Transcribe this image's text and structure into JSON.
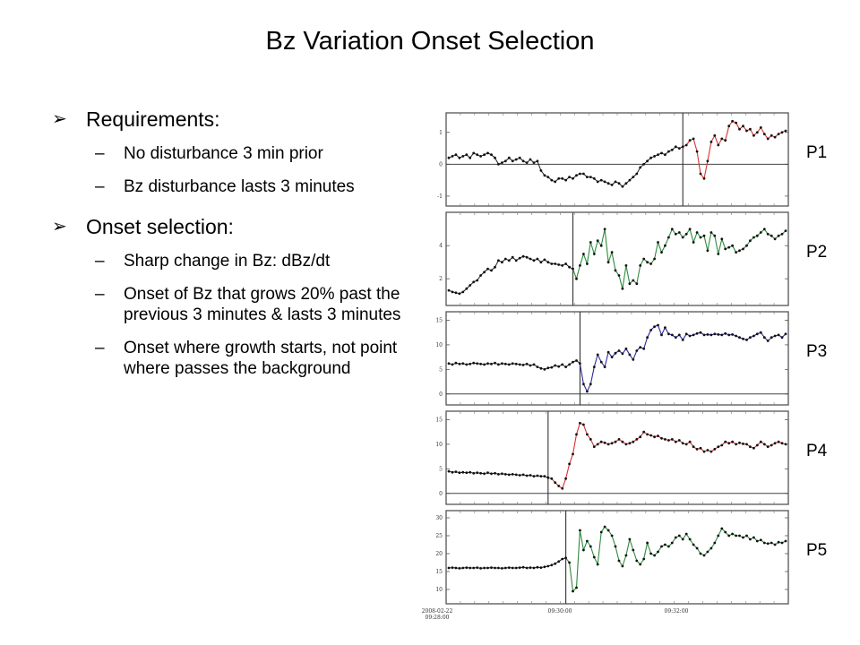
{
  "slide": {
    "title": "Bz Variation Onset Selection",
    "sections": [
      {
        "marker": "➢",
        "heading": "Requirements:",
        "items": [
          "No disturbance 3 min prior",
          "Bz disturbance lasts 3 minutes"
        ]
      },
      {
        "marker": "➢",
        "heading": "Onset selection:",
        "items": [
          "Sharp change in Bz: dBz/dt",
          "Onset of Bz that grows 20% past the previous 3 minutes & lasts 3 minutes",
          "Onset where growth starts, not point where passes the background"
        ]
      }
    ]
  },
  "chart_data": [
    {
      "type": "line",
      "name": "P1",
      "color": "#d93030",
      "yticks": [
        "1",
        "0",
        "-1"
      ],
      "ylim": [
        -1.2,
        1.5
      ],
      "onset_index": 66,
      "baseline": 0,
      "values": [
        0.2,
        0.25,
        0.3,
        0.2,
        0.25,
        0.3,
        0.2,
        0.35,
        0.3,
        0.25,
        0.3,
        0.35,
        0.3,
        0.2,
        0.0,
        0.05,
        0.1,
        0.2,
        0.1,
        0.15,
        0.2,
        0.1,
        0.05,
        0.15,
        0.05,
        0.1,
        -0.2,
        -0.35,
        -0.4,
        -0.5,
        -0.55,
        -0.45,
        -0.45,
        -0.5,
        -0.4,
        -0.45,
        -0.35,
        -0.3,
        -0.3,
        -0.4,
        -0.4,
        -0.45,
        -0.55,
        -0.5,
        -0.55,
        -0.6,
        -0.65,
        -0.55,
        -0.6,
        -0.7,
        -0.6,
        -0.5,
        -0.4,
        -0.3,
        -0.1,
        0.0,
        0.1,
        0.2,
        0.25,
        0.3,
        0.35,
        0.3,
        0.4,
        0.45,
        0.55,
        0.5,
        0.55,
        0.6,
        0.75,
        0.8,
        0.4,
        -0.3,
        -0.45,
        0.1,
        0.7,
        0.9,
        0.6,
        0.8,
        0.75,
        1.2,
        1.35,
        1.3,
        1.1,
        1.2,
        1.05,
        1.1,
        0.9,
        1.0,
        1.15,
        0.95,
        0.8,
        0.9,
        0.85,
        0.95,
        1.0,
        1.05
      ]
    },
    {
      "type": "line",
      "name": "P2",
      "color": "#2e8b3e",
      "yticks": [
        "4",
        "2"
      ],
      "ylim": [
        0.6,
        5.8
      ],
      "onset_index": 35,
      "baseline": null,
      "values": [
        1.3,
        1.2,
        1.15,
        1.1,
        1.2,
        1.4,
        1.6,
        1.8,
        1.9,
        2.2,
        2.4,
        2.6,
        2.5,
        2.7,
        3.1,
        3.0,
        3.2,
        3.1,
        3.3,
        3.1,
        3.25,
        3.35,
        3.3,
        3.2,
        3.1,
        3.2,
        3.0,
        3.15,
        3.0,
        2.9,
        2.9,
        2.85,
        2.8,
        2.9,
        2.7,
        2.6,
        2.0,
        2.8,
        3.5,
        2.9,
        4.2,
        3.5,
        4.3,
        4.0,
        5.0,
        3.0,
        3.6,
        2.5,
        2.2,
        1.4,
        2.8,
        1.7,
        1.9,
        1.7,
        2.8,
        3.2,
        3.0,
        2.9,
        3.2,
        4.2,
        3.6,
        4.0,
        4.5,
        5.0,
        4.7,
        4.8,
        4.5,
        4.7,
        5.0,
        4.2,
        4.8,
        4.5,
        4.6,
        3.7,
        4.8,
        4.6,
        3.5,
        4.4,
        3.8,
        3.9,
        4.0,
        3.6,
        3.7,
        3.8,
        4.0,
        4.3,
        4.5,
        4.6,
        4.8,
        5.0,
        4.7,
        4.6,
        4.4,
        4.6,
        4.7,
        4.9
      ]
    },
    {
      "type": "line",
      "name": "P3",
      "color": "#2a2aa0",
      "yticks": [
        "15",
        "10",
        "5",
        "0"
      ],
      "ylim": [
        -1.5,
        16
      ],
      "onset_index": 37,
      "baseline": 0,
      "values": [
        6.2,
        6.0,
        6.3,
        6.1,
        6.2,
        6.0,
        6.1,
        6.3,
        6.2,
        6.1,
        6.0,
        6.2,
        6.1,
        6.3,
        6.0,
        6.2,
        6.1,
        6.0,
        6.2,
        6.1,
        6.0,
        5.9,
        6.1,
        5.8,
        6.0,
        5.5,
        5.2,
        5.0,
        5.3,
        5.4,
        5.8,
        5.6,
        6.0,
        5.5,
        6.0,
        6.5,
        6.8,
        6.2,
        2.0,
        0.5,
        2.0,
        5.5,
        8.0,
        6.5,
        5.5,
        8.5,
        7.5,
        8.3,
        8.8,
        8.2,
        9.2,
        8.0,
        7.0,
        8.8,
        9.5,
        9.2,
        11.5,
        13.0,
        13.7,
        14.0,
        12.0,
        13.5,
        12.2,
        12.0,
        11.5,
        12.0,
        11.0,
        12.2,
        11.8,
        12.0,
        12.3,
        12.5,
        12.0,
        12.1,
        12.0,
        12.2,
        12.1,
        12.0,
        12.3,
        12.0,
        12.1,
        11.8,
        11.5,
        11.2,
        11.0,
        11.5,
        11.8,
        12.2,
        12.5,
        11.5,
        10.8,
        11.5,
        11.8,
        12.0,
        11.5,
        12.2
      ]
    },
    {
      "type": "line",
      "name": "P4",
      "color": "#d93030",
      "yticks": [
        "15",
        "10",
        "5",
        "0"
      ],
      "ylim": [
        -1.5,
        16
      ],
      "onset_index": 28,
      "baseline": 0,
      "values": [
        4.5,
        4.3,
        4.4,
        4.2,
        4.3,
        4.2,
        4.3,
        4.1,
        4.2,
        4.1,
        4.0,
        4.2,
        4.0,
        4.1,
        3.9,
        4.0,
        3.9,
        3.8,
        3.9,
        3.8,
        3.7,
        3.8,
        3.6,
        3.7,
        3.5,
        3.6,
        3.5,
        3.5,
        3.2,
        3.0,
        2.2,
        1.5,
        1.0,
        3.0,
        6.0,
        8.0,
        12.0,
        14.3,
        14.0,
        12.0,
        11.0,
        9.5,
        10.0,
        10.5,
        10.3,
        10.0,
        10.2,
        10.5,
        11.0,
        10.5,
        10.0,
        10.2,
        10.5,
        11.0,
        11.5,
        12.5,
        12.0,
        11.8,
        11.5,
        11.7,
        11.2,
        11.0,
        10.8,
        11.0,
        10.5,
        10.8,
        10.2,
        10.0,
        10.5,
        9.5,
        9.0,
        9.2,
        8.5,
        8.8,
        8.5,
        9.0,
        9.5,
        9.8,
        10.5,
        10.2,
        10.5,
        10.0,
        10.3,
        10.1,
        10.0,
        9.5,
        9.2,
        9.8,
        10.5,
        10.0,
        9.5,
        9.8,
        10.2,
        10.5,
        10.2,
        10.0
      ]
    },
    {
      "type": "line",
      "name": "P5",
      "color": "#2e8b3e",
      "yticks": [
        "30",
        "25",
        "20",
        "15",
        "10"
      ],
      "ylim": [
        7,
        31
      ],
      "onset_index": 33,
      "baseline": null,
      "values": [
        16.0,
        16.1,
        16.0,
        15.9,
        16.0,
        16.1,
        16.0,
        16.0,
        16.1,
        15.9,
        16.0,
        16.0,
        16.1,
        16.0,
        16.0,
        15.9,
        16.0,
        16.1,
        16.0,
        16.0,
        16.1,
        16.2,
        16.0,
        16.1,
        16.0,
        16.2,
        16.1,
        16.3,
        16.5,
        16.8,
        17.2,
        17.8,
        18.5,
        18.8,
        17.5,
        9.5,
        10.5,
        26.5,
        21.0,
        23.5,
        22.0,
        19.0,
        17.0,
        26.0,
        27.5,
        26.5,
        25.0,
        22.0,
        18.0,
        16.5,
        19.5,
        24.0,
        21.0,
        18.0,
        17.0,
        18.5,
        23.0,
        20.0,
        19.5,
        20.5,
        22.0,
        22.5,
        22.0,
        23.0,
        24.5,
        25.0,
        24.0,
        25.5,
        24.0,
        22.5,
        21.5,
        20.0,
        19.5,
        20.5,
        21.5,
        23.0,
        25.0,
        27.0,
        26.0,
        25.0,
        25.5,
        25.0,
        25.0,
        24.5,
        25.0,
        24.0,
        24.5,
        23.5,
        23.8,
        23.0,
        22.8,
        23.0,
        22.5,
        23.2,
        23.0,
        23.5
      ]
    }
  ],
  "x_axis": {
    "ticks": [
      "09:30:00",
      "09:32:00"
    ],
    "start_label_date": "2008-02-22",
    "start_label_time": "09:28:00"
  }
}
